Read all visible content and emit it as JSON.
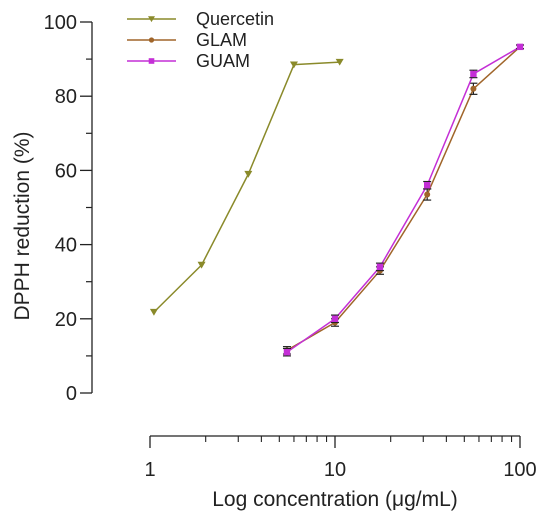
{
  "chart_data": {
    "type": "line",
    "title": "",
    "xlabel": "Log concentration (μg/mL)",
    "ylabel": "DPPH  reduction (%)",
    "x_scale": "log",
    "xlim": [
      1,
      100
    ],
    "ylim": [
      0,
      100
    ],
    "x_ticks": [
      1,
      10,
      100
    ],
    "x_tick_labels": [
      "1",
      "10",
      "100"
    ],
    "y_ticks": [
      0,
      20,
      40,
      60,
      80,
      100
    ],
    "y_tick_labels": [
      "0",
      "20",
      "40",
      "60",
      "80",
      "100"
    ],
    "grid": false,
    "legend_position": "top-left",
    "series": [
      {
        "name": "Quercetin",
        "color": "#8a8a2a",
        "marker": "triangle-down",
        "x": [
          1.05,
          1.9,
          3.4,
          6.0,
          10.6
        ],
        "y": [
          21.8,
          34.5,
          59.0,
          88.5,
          89.2
        ]
      },
      {
        "name": "GLAM",
        "color": "#a0652a",
        "marker": "circle",
        "x": [
          5.5,
          10.0,
          17.5,
          31.5,
          56.0,
          100.0
        ],
        "y": [
          11.5,
          19.0,
          33.0,
          53.5,
          82.0,
          93.3
        ],
        "err": [
          1.0,
          1.0,
          1.0,
          1.5,
          1.5,
          0.5
        ]
      },
      {
        "name": "GUAM",
        "color": "#c42fd6",
        "marker": "square",
        "x": [
          5.5,
          10.0,
          17.5,
          31.5,
          56.0,
          100.0
        ],
        "y": [
          11.0,
          20.0,
          34.0,
          56.0,
          86.0,
          93.3
        ],
        "err": [
          1.0,
          1.0,
          1.0,
          1.0,
          1.0,
          0.5
        ]
      }
    ]
  }
}
